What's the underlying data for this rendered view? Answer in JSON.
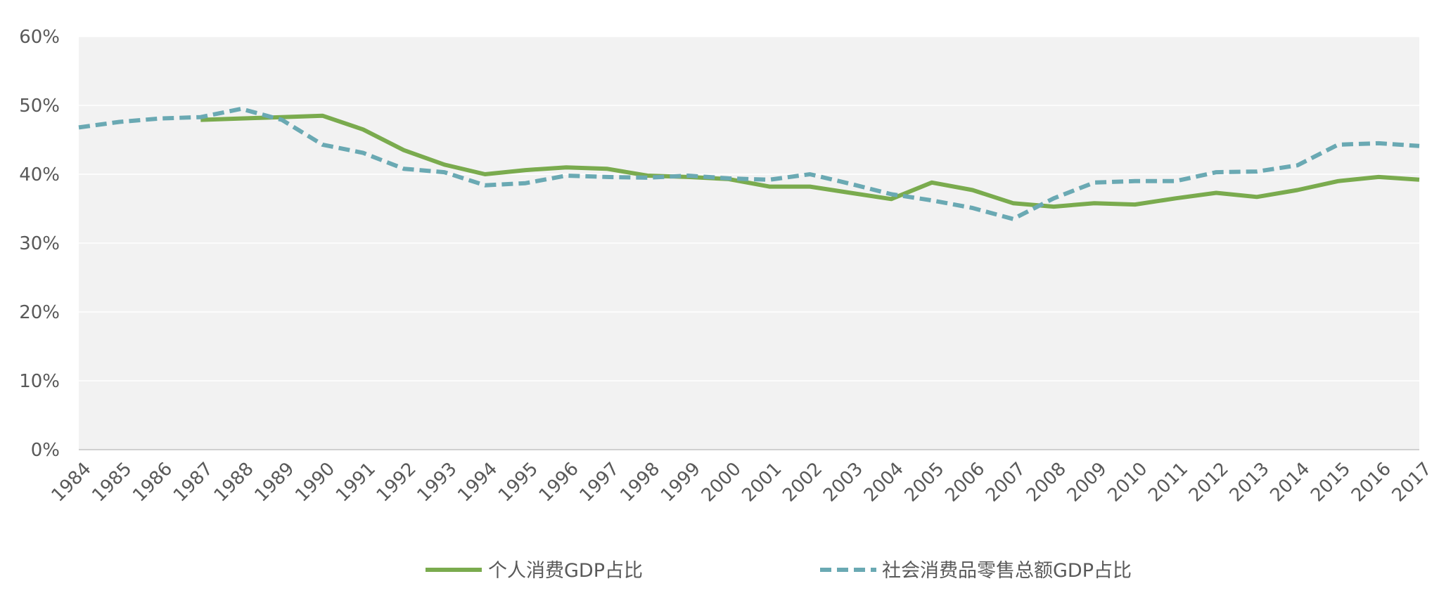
{
  "chart_data": {
    "type": "line",
    "title": "",
    "xlabel": "",
    "ylabel": "",
    "x": [
      "1984",
      "1985",
      "1986",
      "1987",
      "1988",
      "1989",
      "1990",
      "1991",
      "1992",
      "1993",
      "1994",
      "1995",
      "1996",
      "1997",
      "1998",
      "1999",
      "2000",
      "2001",
      "2002",
      "2003",
      "2004",
      "2005",
      "2006",
      "2007",
      "2008",
      "2009",
      "2010",
      "2011",
      "2012",
      "2013",
      "2014",
      "2015",
      "2016",
      "2017"
    ],
    "ylim": [
      0,
      60
    ],
    "y_ticks": [
      "0%",
      "10%",
      "20%",
      "30%",
      "40%",
      "50%",
      "60%"
    ],
    "y_tick_values": [
      0,
      10,
      20,
      30,
      40,
      50,
      60
    ],
    "grid": true,
    "plot_background": "#f2f2f2",
    "legend_position": "bottom",
    "series": [
      {
        "name": "个人消费GDP占比",
        "color": "#7aab4e",
        "dash": "solid",
        "values": [
          null,
          null,
          null,
          47.9,
          48.1,
          48.3,
          48.5,
          46.5,
          43.5,
          41.4,
          40.0,
          40.6,
          41.0,
          40.8,
          39.8,
          39.6,
          39.3,
          38.2,
          38.2,
          37.3,
          36.4,
          38.8,
          37.7,
          35.8,
          35.3,
          35.8,
          35.6,
          36.5,
          37.3,
          36.7,
          37.7,
          39.0,
          39.6,
          39.2
        ]
      },
      {
        "name": "社会消费品零售总额GDP占比",
        "color": "#6aa9b3",
        "dash": "dashed",
        "values": [
          46.8,
          47.6,
          48.1,
          48.3,
          49.5,
          47.9,
          44.3,
          43.1,
          40.8,
          40.3,
          38.4,
          38.7,
          39.8,
          39.6,
          39.5,
          39.8,
          39.4,
          39.2,
          40.0,
          38.6,
          37.1,
          36.2,
          35.1,
          33.5,
          36.5,
          38.8,
          39.0,
          39.0,
          40.3,
          40.4,
          41.3,
          44.3,
          44.5,
          44.1
        ]
      }
    ]
  }
}
